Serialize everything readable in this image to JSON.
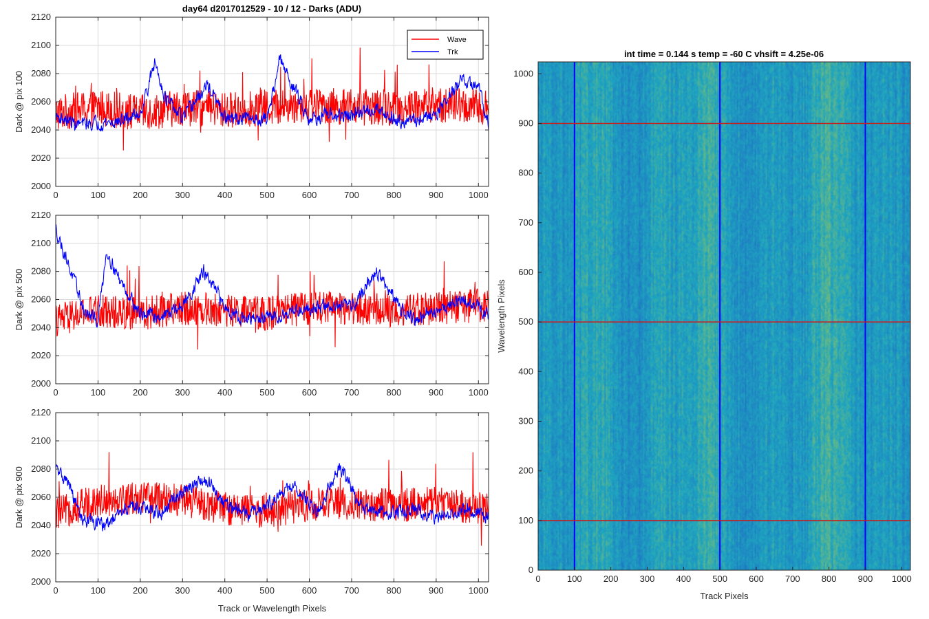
{
  "figure_title": "day64 d2017012529 - 10 / 12 - Darks (ADU)",
  "colors": {
    "wave": "#ff0000",
    "trk": "#0000ff",
    "axis": "#262626",
    "grid": "#d9d9d9"
  },
  "chart_data": [
    {
      "type": "line",
      "ylabel": "Dark @ pix 100",
      "xlabel": "",
      "xlim": [
        0,
        1024
      ],
      "ylim": [
        2000,
        2120
      ],
      "xticks": [
        0,
        100,
        200,
        300,
        400,
        500,
        600,
        700,
        800,
        900,
        1000
      ],
      "yticks": [
        2000,
        2020,
        2040,
        2060,
        2080,
        2100,
        2120
      ],
      "grid": true,
      "legend": {
        "location": "top-right",
        "entries": [
          "Wave",
          "Trk"
        ]
      },
      "series": [
        {
          "name": "Wave",
          "color": "#ff0000",
          "base": 2053,
          "noise": 13,
          "points": [
            [
              0,
              2052
            ],
            [
              100,
              2056
            ],
            [
              200,
              2052
            ],
            [
              300,
              2056
            ],
            [
              400,
              2054
            ],
            [
              500,
              2056
            ],
            [
              600,
              2058
            ],
            [
              700,
              2056
            ],
            [
              800,
              2056
            ],
            [
              900,
              2058
            ],
            [
              1024,
              2056
            ]
          ]
        },
        {
          "name": "Trk",
          "color": "#0000ff",
          "base": 2046,
          "noise": 5,
          "points": [
            [
              0,
              2050
            ],
            [
              50,
              2044
            ],
            [
              150,
              2046
            ],
            [
              200,
              2052
            ],
            [
              235,
              2088
            ],
            [
              260,
              2062
            ],
            [
              300,
              2048
            ],
            [
              360,
              2072
            ],
            [
              400,
              2048
            ],
            [
              500,
              2048
            ],
            [
              530,
              2090
            ],
            [
              560,
              2072
            ],
            [
              600,
              2048
            ],
            [
              650,
              2050
            ],
            [
              700,
              2050
            ],
            [
              760,
              2056
            ],
            [
              800,
              2048
            ],
            [
              850,
              2046
            ],
            [
              900,
              2052
            ],
            [
              960,
              2075
            ],
            [
              1000,
              2070
            ],
            [
              1024,
              2046
            ]
          ]
        }
      ]
    },
    {
      "type": "line",
      "ylabel": "Dark @ pix 500",
      "xlabel": "",
      "xlim": [
        0,
        1024
      ],
      "ylim": [
        2000,
        2120
      ],
      "xticks": [
        0,
        100,
        200,
        300,
        400,
        500,
        600,
        700,
        800,
        900,
        1000
      ],
      "yticks": [
        2000,
        2020,
        2040,
        2060,
        2080,
        2100,
        2120
      ],
      "grid": true,
      "series": [
        {
          "name": "Wave",
          "color": "#ff0000",
          "base": 2052,
          "noise": 12,
          "points": [
            [
              0,
              2045
            ],
            [
              100,
              2052
            ],
            [
              200,
              2050
            ],
            [
              300,
              2054
            ],
            [
              400,
              2052
            ],
            [
              500,
              2050
            ],
            [
              600,
              2054
            ],
            [
              700,
              2054
            ],
            [
              800,
              2052
            ],
            [
              900,
              2054
            ],
            [
              1024,
              2056
            ]
          ]
        },
        {
          "name": "Trk",
          "color": "#0000ff",
          "base": 2055,
          "noise": 5,
          "points": [
            [
              0,
              2110
            ],
            [
              30,
              2085
            ],
            [
              70,
              2050
            ],
            [
              100,
              2045
            ],
            [
              120,
              2095
            ],
            [
              150,
              2075
            ],
            [
              200,
              2050
            ],
            [
              250,
              2048
            ],
            [
              300,
              2055
            ],
            [
              350,
              2080
            ],
            [
              400,
              2055
            ],
            [
              450,
              2045
            ],
            [
              520,
              2048
            ],
            [
              560,
              2052
            ],
            [
              620,
              2055
            ],
            [
              700,
              2055
            ],
            [
              760,
              2080
            ],
            [
              800,
              2060
            ],
            [
              850,
              2045
            ],
            [
              900,
              2052
            ],
            [
              960,
              2060
            ],
            [
              1024,
              2050
            ]
          ]
        }
      ]
    },
    {
      "type": "line",
      "ylabel": "Dark @ pix 900",
      "xlabel": "Track or Wavelength Pixels",
      "xlim": [
        0,
        1024
      ],
      "ylim": [
        2000,
        2120
      ],
      "xticks": [
        0,
        100,
        200,
        300,
        400,
        500,
        600,
        700,
        800,
        900,
        1000
      ],
      "yticks": [
        2000,
        2020,
        2040,
        2060,
        2080,
        2100,
        2120
      ],
      "grid": true,
      "series": [
        {
          "name": "Wave",
          "color": "#ff0000",
          "base": 2052,
          "noise": 12,
          "points": [
            [
              0,
              2048
            ],
            [
              100,
              2058
            ],
            [
              200,
              2060
            ],
            [
              300,
              2058
            ],
            [
              400,
              2052
            ],
            [
              500,
              2050
            ],
            [
              600,
              2055
            ],
            [
              700,
              2056
            ],
            [
              800,
              2054
            ],
            [
              900,
              2056
            ],
            [
              1024,
              2052
            ]
          ]
        },
        {
          "name": "Trk",
          "color": "#0000ff",
          "base": 2052,
          "noise": 5,
          "points": [
            [
              0,
              2080
            ],
            [
              30,
              2070
            ],
            [
              60,
              2045
            ],
            [
              120,
              2040
            ],
            [
              180,
              2055
            ],
            [
              250,
              2048
            ],
            [
              300,
              2065
            ],
            [
              360,
              2072
            ],
            [
              400,
              2055
            ],
            [
              450,
              2048
            ],
            [
              500,
              2055
            ],
            [
              560,
              2068
            ],
            [
              620,
              2050
            ],
            [
              670,
              2082
            ],
            [
              720,
              2055
            ],
            [
              780,
              2048
            ],
            [
              850,
              2052
            ],
            [
              900,
              2045
            ],
            [
              960,
              2052
            ],
            [
              1024,
              2046
            ]
          ]
        }
      ]
    },
    {
      "type": "heatmap",
      "title": "int time = 0.144 s   temp = -60 C   vhsift = 4.25e-06",
      "xlabel": "Track Pixels",
      "ylabel": "Wavelength Pixels",
      "xlim": [
        0,
        1024
      ],
      "ylim": [
        0,
        1024
      ],
      "xticks": [
        0,
        100,
        200,
        300,
        400,
        500,
        600,
        700,
        800,
        900,
        1000
      ],
      "yticks": [
        0,
        100,
        200,
        300,
        400,
        500,
        600,
        700,
        800,
        900,
        1000
      ],
      "colormap": {
        "low": "#1f6fc4",
        "mid": "#1ea5c0",
        "high": "#a8c94f"
      },
      "vertical_lines": {
        "x": [
          100,
          500,
          900
        ],
        "color": "#0000ff"
      },
      "horizontal_lines": {
        "y": [
          100,
          500,
          900
        ],
        "color": "#c81e1e"
      }
    }
  ]
}
